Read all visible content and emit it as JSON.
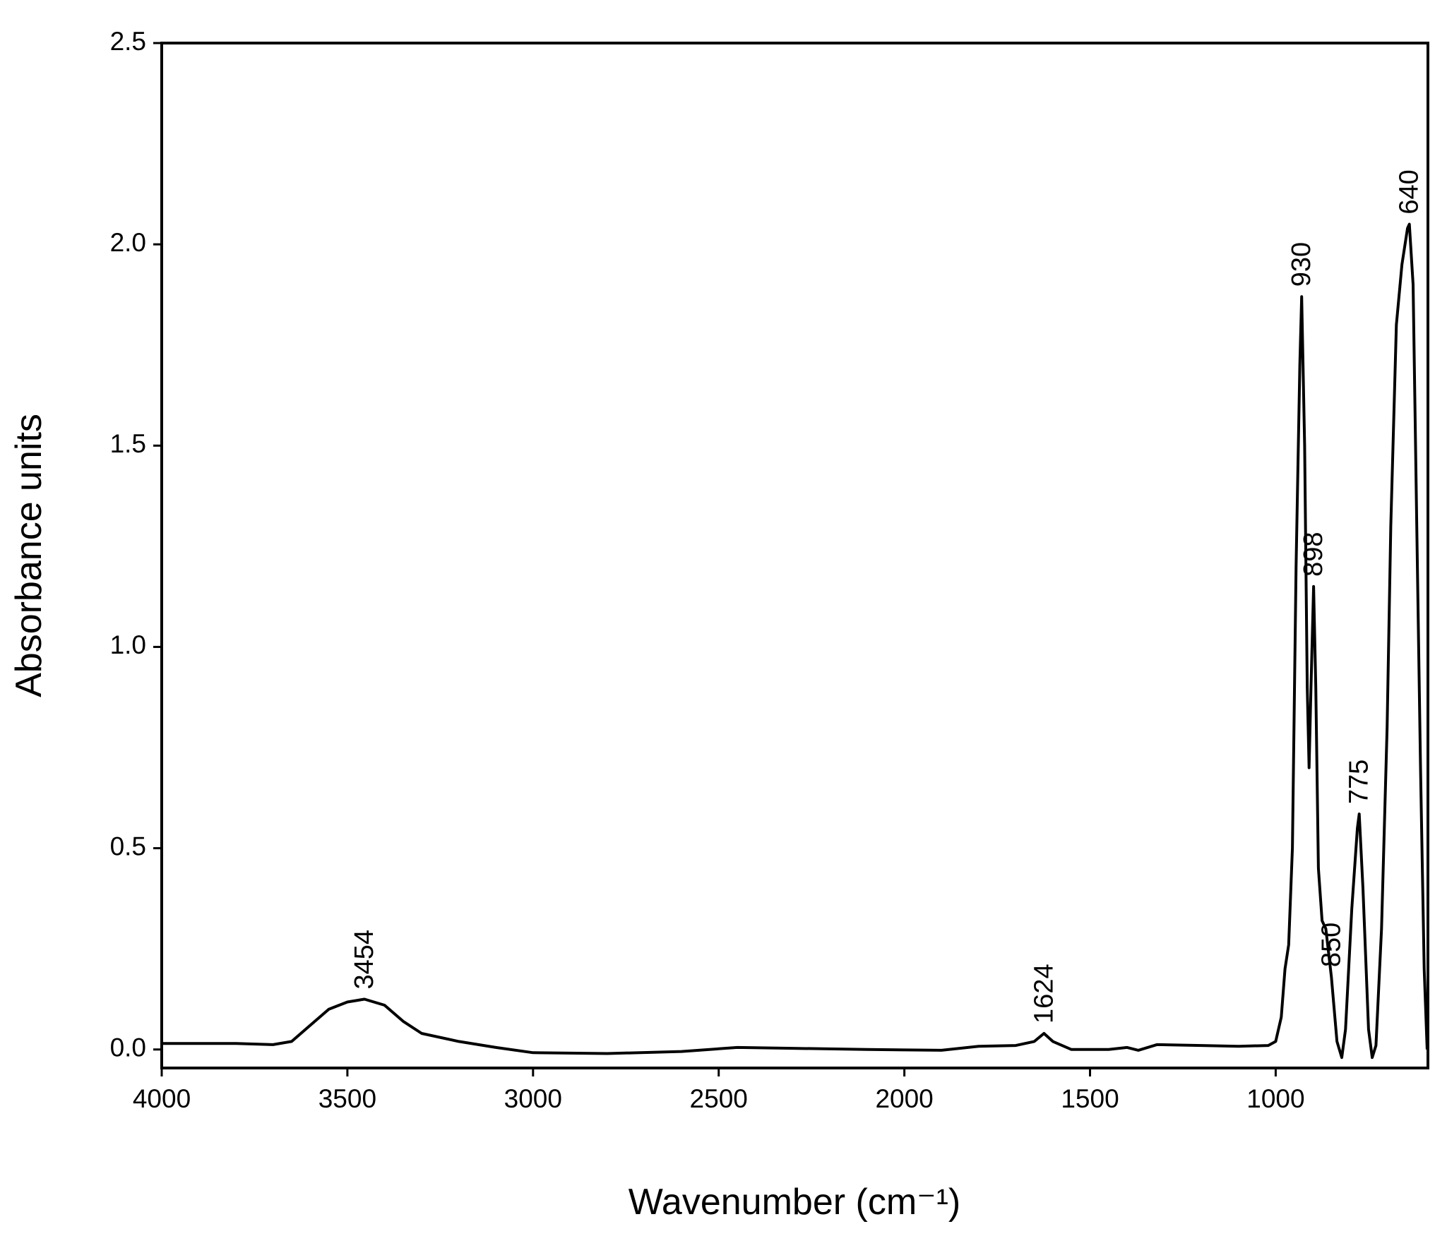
{
  "chart_data": {
    "type": "line",
    "xlabel": "Wavenumber (cm⁻¹)",
    "ylabel": "Absorbance units",
    "x": [
      4000,
      3900,
      3800,
      3700,
      3650,
      3600,
      3550,
      3500,
      3454,
      3400,
      3350,
      3300,
      3200,
      3100,
      3000,
      2800,
      2600,
      2450,
      2300,
      2100,
      1900,
      1800,
      1700,
      1650,
      1624,
      1600,
      1550,
      1450,
      1400,
      1370,
      1320,
      1200,
      1100,
      1020,
      1000,
      985,
      975,
      965,
      955,
      945,
      935,
      930,
      922,
      915,
      910,
      905,
      898,
      892,
      885,
      875,
      865,
      850,
      835,
      822,
      812,
      795,
      780,
      775,
      765,
      750,
      740,
      730,
      715,
      700,
      690,
      675,
      660,
      645,
      640,
      630,
      620,
      610,
      600,
      592
    ],
    "values": [
      0.015,
      0.015,
      0.015,
      0.012,
      0.02,
      0.06,
      0.1,
      0.118,
      0.125,
      0.11,
      0.07,
      0.04,
      0.02,
      0.005,
      -0.008,
      -0.01,
      -0.005,
      0.005,
      0.003,
      0.0,
      -0.002,
      0.008,
      0.01,
      0.02,
      0.04,
      0.02,
      0.0,
      0.0,
      0.005,
      -0.002,
      0.012,
      0.01,
      0.008,
      0.01,
      0.02,
      0.08,
      0.2,
      0.26,
      0.5,
      1.2,
      1.7,
      1.87,
      1.5,
      0.9,
      0.7,
      0.9,
      1.15,
      0.9,
      0.45,
      0.32,
      0.3,
      0.18,
      0.02,
      -0.02,
      0.05,
      0.35,
      0.55,
      0.585,
      0.4,
      0.05,
      -0.02,
      0.01,
      0.3,
      0.8,
      1.3,
      1.8,
      1.95,
      2.04,
      2.05,
      1.9,
      1.3,
      0.7,
      0.2,
      0.0
    ],
    "color": "#000000",
    "annotations": [
      3454,
      1624,
      930,
      898,
      850,
      775,
      640
    ],
    "xlim": [
      4000,
      590
    ],
    "xticks": [
      4000,
      3500,
      3000,
      2500,
      2000,
      1500,
      1000
    ],
    "ylim": [
      -0.046,
      2.5
    ],
    "yticks": [
      {
        "value": 0,
        "label": "0.0"
      },
      0.5,
      {
        "value": 1,
        "label": "1.0"
      },
      1.5,
      {
        "value": 2,
        "label": "2.0"
      },
      2.5
    ]
  }
}
